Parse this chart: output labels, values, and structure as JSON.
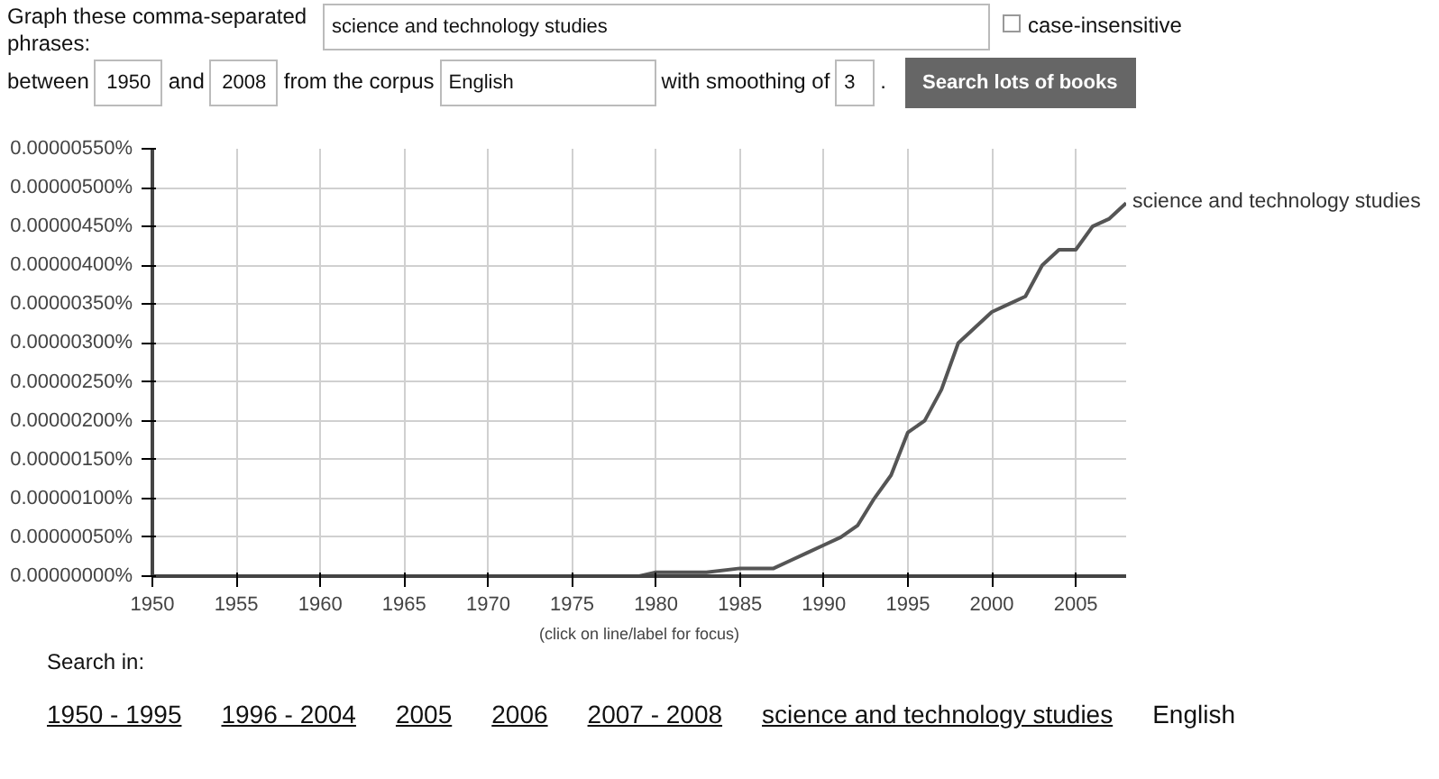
{
  "chart_data": {
    "type": "line",
    "xlabel": "(click on line/label for focus)",
    "x": [
      1950,
      1955,
      1960,
      1961,
      1965,
      1970,
      1971,
      1975,
      1979,
      1980,
      1983,
      1985,
      1986,
      1987,
      1988,
      1989,
      1990,
      1991,
      1992,
      1993,
      1994,
      1995,
      1996,
      1997,
      1998,
      1999,
      2000,
      2001,
      2002,
      2003,
      2004,
      2005,
      2006,
      2007,
      2008
    ],
    "series": [
      {
        "name": "science and technology studies",
        "color": "#555555",
        "values": [
          0,
          0,
          0,
          0,
          0,
          0,
          0,
          0,
          0,
          5e-08,
          5e-08,
          1e-07,
          1e-07,
          1e-07,
          2e-07,
          3e-07,
          4e-07,
          5e-07,
          6.5e-07,
          1e-06,
          1.3e-06,
          1.85e-06,
          2e-06,
          2.4e-06,
          3e-06,
          3.2e-06,
          3.4e-06,
          3.5e-06,
          3.6e-06,
          4e-06,
          4.2e-06,
          4.2e-06,
          4.5e-06,
          4.6e-06,
          4.8e-06
        ]
      }
    ],
    "xlim": [
      1950,
      2008
    ],
    "xticks": [
      1950,
      1955,
      1960,
      1965,
      1970,
      1975,
      1980,
      1985,
      1990,
      1995,
      2000,
      2005
    ],
    "ylim": [
      0,
      5.5e-06
    ],
    "yticks": [
      {
        "value": 0,
        "label": "0.00000000%"
      },
      {
        "value": 5e-07,
        "label": "0.00000050%"
      },
      {
        "value": 1e-06,
        "label": "0.00000100%"
      },
      {
        "value": 1.5e-06,
        "label": "0.00000150%"
      },
      {
        "value": 2e-06,
        "label": "0.00000200%"
      },
      {
        "value": 2.5e-06,
        "label": "0.00000250%"
      },
      {
        "value": 3e-06,
        "label": "0.00000300%"
      },
      {
        "value": 3.5e-06,
        "label": "0.00000350%"
      },
      {
        "value": 4e-06,
        "label": "0.00000400%"
      },
      {
        "value": 4.5e-06,
        "label": "0.00000450%"
      },
      {
        "value": 5e-06,
        "label": "0.00000500%"
      },
      {
        "value": 5.5e-06,
        "label": "0.00000550%"
      }
    ],
    "grid": true,
    "line_style": "solid",
    "annotations": [
      "Graph these comma-separated phrases:",
      "science and technology studies",
      "case-insensitive",
      "between",
      "1950",
      "and",
      "2008",
      "from the corpus",
      "English",
      "with smoothing of",
      "3",
      ".",
      "Search lots of books",
      "Search in:",
      "1950 - 1995",
      "1996 - 2004",
      "2005",
      "2006",
      "2007 - 2008",
      "science and technology studies",
      "English"
    ]
  }
}
